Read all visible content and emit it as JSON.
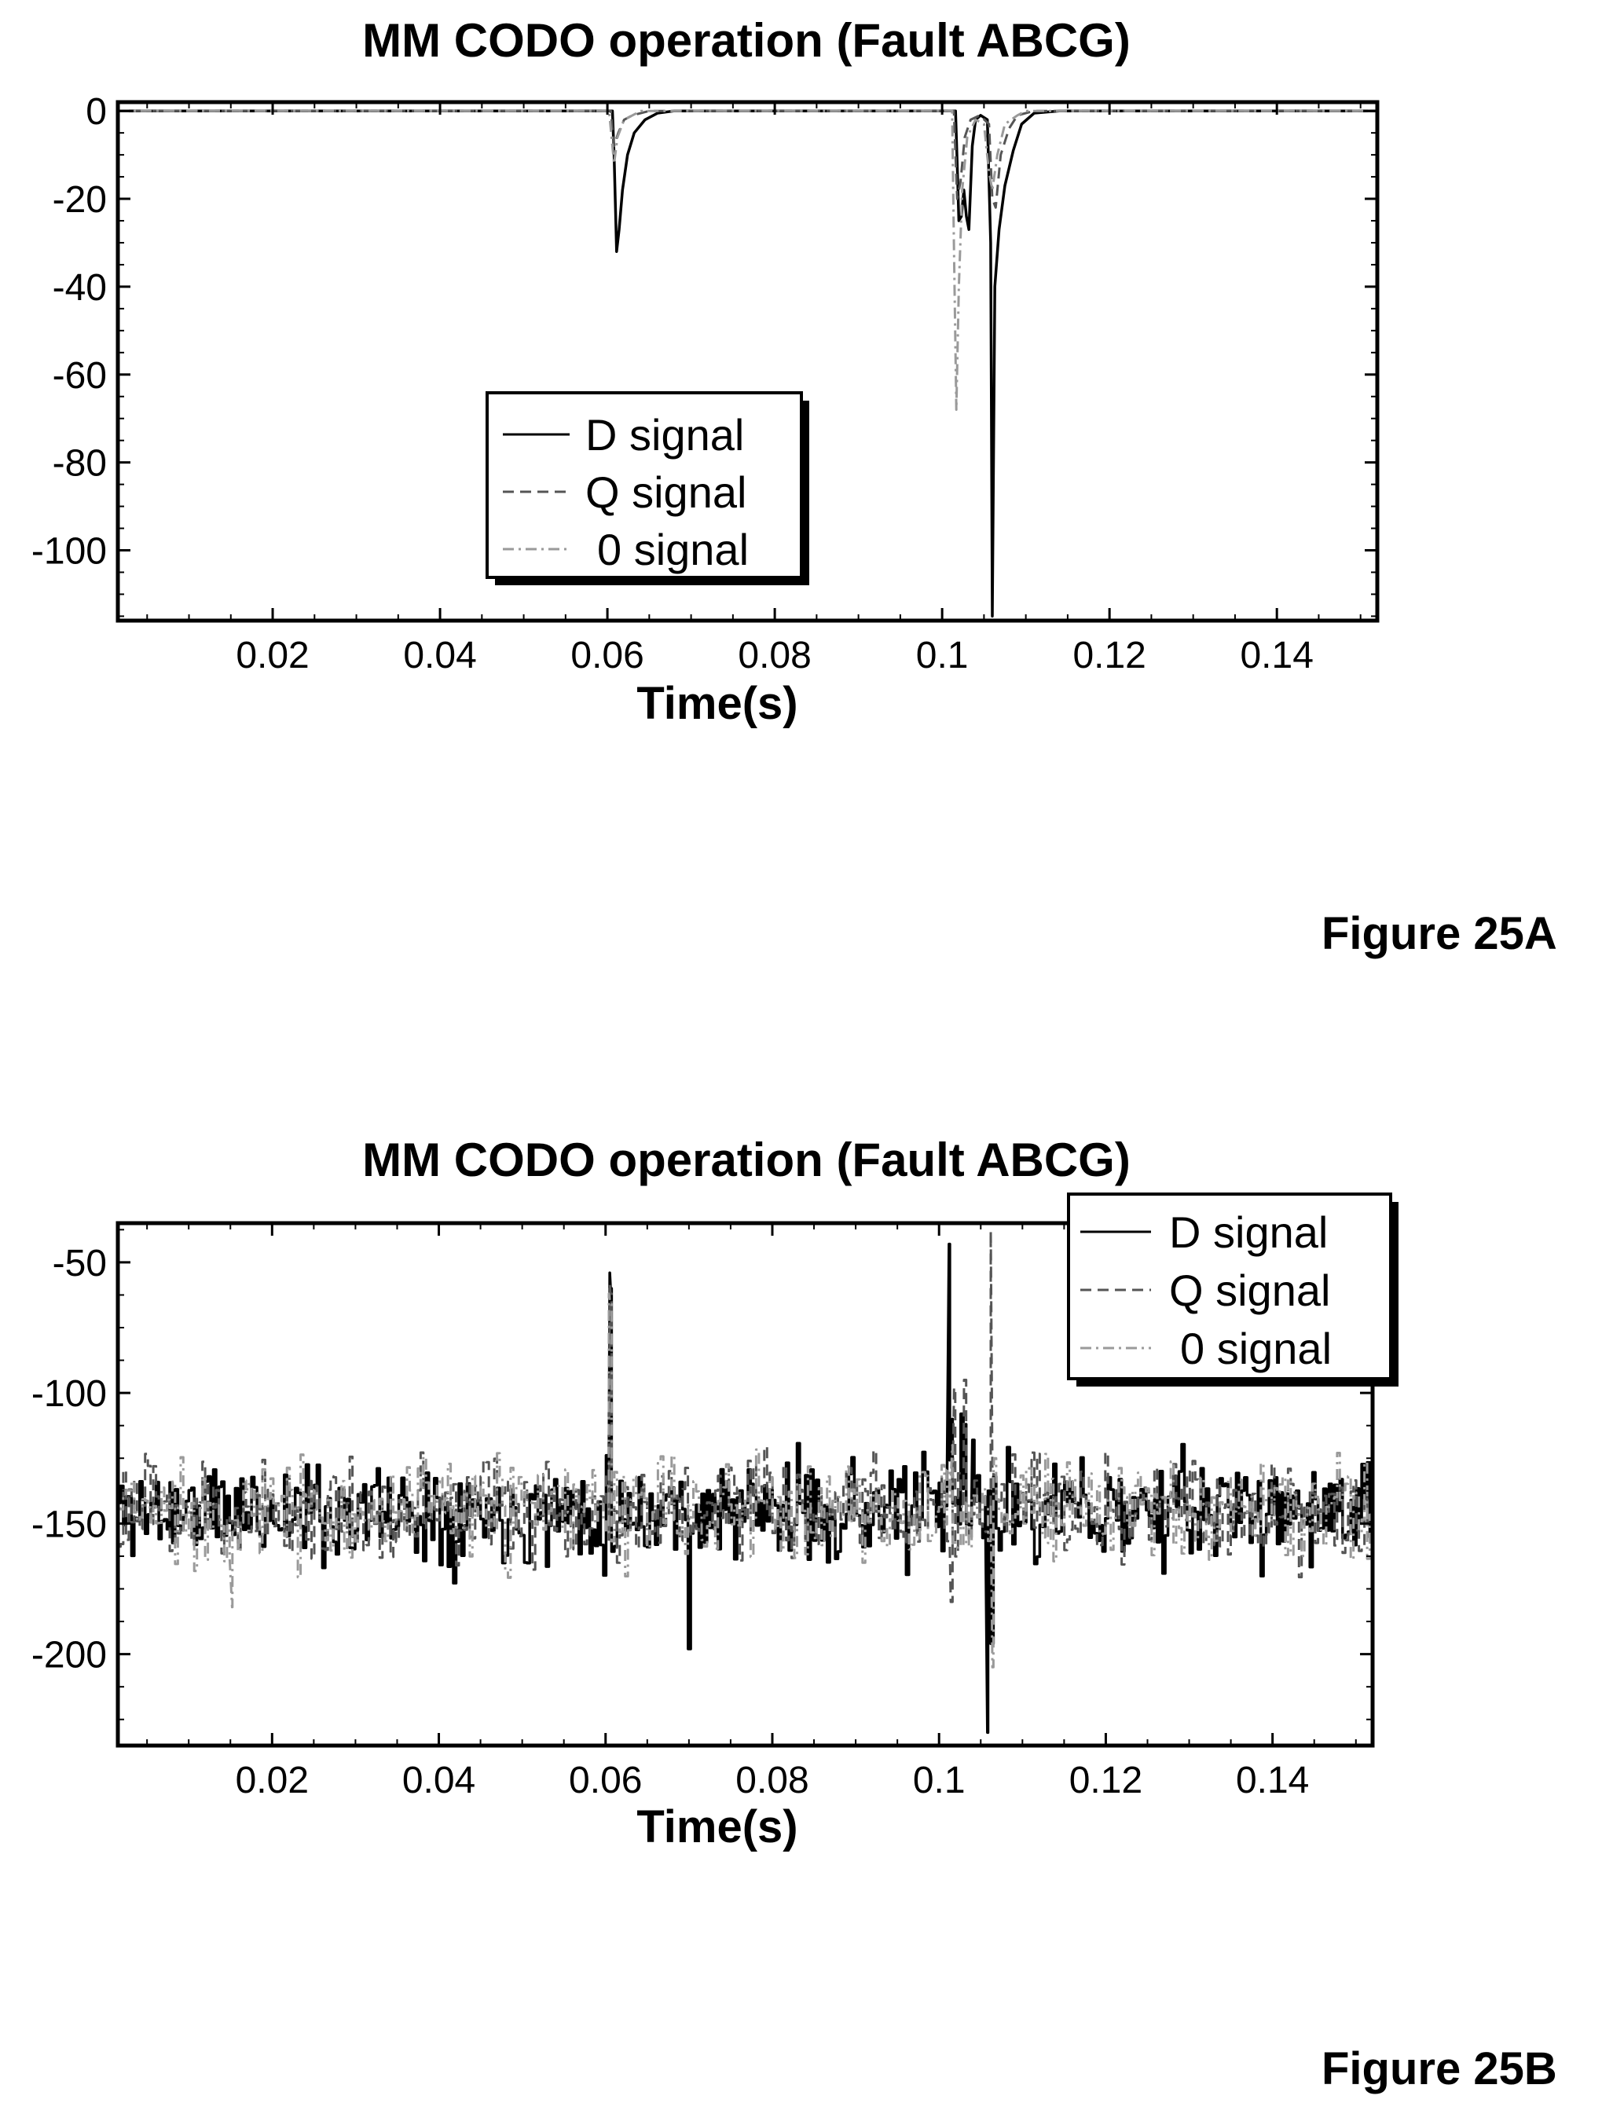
{
  "figures": {
    "a": "Figure 25A",
    "b": "Figure 25B"
  },
  "chart_data": [
    {
      "type": "line",
      "title": "MM CODO operation (Fault ABCG)",
      "xlabel": "Time(s)",
      "ylabel": "",
      "xlim": [
        0.0015,
        0.152
      ],
      "ylim": [
        -116,
        2
      ],
      "xticks": [
        0.02,
        0.04,
        0.06,
        0.08,
        0.1,
        0.12,
        0.14
      ],
      "xtick_labels": [
        "0.02",
        "0.04",
        "0.06",
        "0.08",
        "0.1",
        "0.12",
        "0.14"
      ],
      "yticks": [
        0,
        -20,
        -40,
        -60,
        -80,
        -100
      ],
      "ytick_labels": [
        "0",
        "-20",
        "-40",
        "-60",
        "-80",
        "-100"
      ],
      "legend": {
        "position": "center",
        "entries": [
          "D signal",
          "Q signal",
          "0 signal"
        ]
      },
      "grid": false,
      "series": [
        {
          "name": "D signal",
          "color": "#000000",
          "style": "solid",
          "points": [
            [
              0.0015,
              0
            ],
            [
              0.0606,
              0
            ],
            [
              0.0608,
              -10
            ],
            [
              0.0611,
              -32
            ],
            [
              0.0614,
              -27
            ],
            [
              0.0618,
              -18
            ],
            [
              0.0624,
              -10
            ],
            [
              0.0632,
              -5
            ],
            [
              0.0645,
              -2
            ],
            [
              0.066,
              -0.5
            ],
            [
              0.068,
              0
            ],
            [
              0.1016,
              0
            ],
            [
              0.1018,
              -12
            ],
            [
              0.102,
              -25
            ],
            [
              0.1023,
              -24
            ],
            [
              0.1026,
              -18
            ],
            [
              0.1029,
              -24
            ],
            [
              0.1032,
              -27
            ],
            [
              0.1036,
              -8
            ],
            [
              0.104,
              -2
            ],
            [
              0.1046,
              -1
            ],
            [
              0.1054,
              -2
            ],
            [
              0.1058,
              -30
            ],
            [
              0.106,
              -115
            ],
            [
              0.1063,
              -40
            ],
            [
              0.1068,
              -27
            ],
            [
              0.1075,
              -17
            ],
            [
              0.1085,
              -9
            ],
            [
              0.1095,
              -3
            ],
            [
              0.111,
              -0.5
            ],
            [
              0.114,
              0
            ],
            [
              0.152,
              0
            ]
          ]
        },
        {
          "name": "Q signal",
          "color": "#555555",
          "style": "dashed",
          "points": [
            [
              0.0015,
              0
            ],
            [
              0.0604,
              0
            ],
            [
              0.0606,
              -4
            ],
            [
              0.0608,
              -8
            ],
            [
              0.0613,
              -5
            ],
            [
              0.062,
              -2
            ],
            [
              0.063,
              -1
            ],
            [
              0.065,
              0
            ],
            [
              0.1014,
              0
            ],
            [
              0.1016,
              -10
            ],
            [
              0.1018,
              -20
            ],
            [
              0.1022,
              -16
            ],
            [
              0.1027,
              -6
            ],
            [
              0.1034,
              -2
            ],
            [
              0.1045,
              -1
            ],
            [
              0.1056,
              -3
            ],
            [
              0.106,
              -20
            ],
            [
              0.1064,
              -22
            ],
            [
              0.107,
              -10
            ],
            [
              0.108,
              -4
            ],
            [
              0.109,
              -1
            ],
            [
              0.111,
              0
            ],
            [
              0.152,
              0
            ]
          ]
        },
        {
          "name": "0 signal",
          "color": "#9a9a9a",
          "style": "dashdot",
          "points": [
            [
              0.0015,
              0
            ],
            [
              0.0602,
              0
            ],
            [
              0.0605,
              -6
            ],
            [
              0.0608,
              -12
            ],
            [
              0.0612,
              -6
            ],
            [
              0.062,
              -2
            ],
            [
              0.064,
              0
            ],
            [
              0.1012,
              0
            ],
            [
              0.1014,
              -30
            ],
            [
              0.1017,
              -68
            ],
            [
              0.102,
              -40
            ],
            [
              0.1024,
              -18
            ],
            [
              0.103,
              -6
            ],
            [
              0.104,
              -2
            ],
            [
              0.105,
              -3
            ],
            [
              0.1056,
              -14
            ],
            [
              0.106,
              -18
            ],
            [
              0.1066,
              -10
            ],
            [
              0.1075,
              -3
            ],
            [
              0.109,
              -1
            ],
            [
              0.11,
              0
            ],
            [
              0.152,
              0
            ]
          ]
        }
      ]
    },
    {
      "type": "line",
      "title": "MM CODO operation (Fault ABCG)",
      "xlabel": "Time(s)",
      "ylabel": "",
      "xlim": [
        0.0015,
        0.152
      ],
      "ylim": [
        -235,
        -35
      ],
      "xticks": [
        0.02,
        0.04,
        0.06,
        0.08,
        0.1,
        0.12,
        0.14
      ],
      "xtick_labels": [
        "0.02",
        "0.04",
        "0.06",
        "0.08",
        "0.1",
        "0.12",
        "0.14"
      ],
      "yticks": [
        -50,
        -100,
        -150,
        -200
      ],
      "ytick_labels": [
        "-50",
        "-100",
        "-150",
        "-200"
      ],
      "legend": {
        "position": "top-right",
        "entries": [
          "D signal",
          "Q signal",
          "0 signal"
        ]
      },
      "grid": false,
      "noise": {
        "baseline": -145,
        "spread": 14
      },
      "series": [
        {
          "name": "D signal",
          "color": "#000000",
          "style": "solid",
          "spikes": [
            [
              0.0605,
              -54
            ],
            [
              0.0606,
              -60
            ],
            [
              0.0699,
              -198
            ],
            [
              0.1012,
              -43
            ],
            [
              0.1016,
              -110
            ],
            [
              0.1026,
              -108
            ],
            [
              0.1032,
              -112
            ],
            [
              0.104,
              -118
            ],
            [
              0.1058,
              -230
            ],
            [
              0.1062,
              -196
            ]
          ],
          "seed": 11
        },
        {
          "name": "Q signal",
          "color": "#555555",
          "style": "dashed",
          "spikes": [
            [
              0.0605,
              -58
            ],
            [
              0.0606,
              -62
            ],
            [
              0.1014,
              -180
            ],
            [
              0.1018,
              -98
            ],
            [
              0.103,
              -95
            ],
            [
              0.1062,
              -38
            ],
            [
              0.1064,
              -130
            ]
          ],
          "seed": 23
        },
        {
          "name": "0 signal",
          "color": "#9a9a9a",
          "style": "dashdot",
          "spikes": [
            [
              0.0604,
              -62
            ],
            [
              0.0606,
              -66
            ],
            [
              0.0152,
              -182
            ],
            [
              0.1016,
              -120
            ],
            [
              0.1064,
              -205
            ],
            [
              0.1066,
              -125
            ]
          ],
          "seed": 37
        }
      ]
    }
  ]
}
